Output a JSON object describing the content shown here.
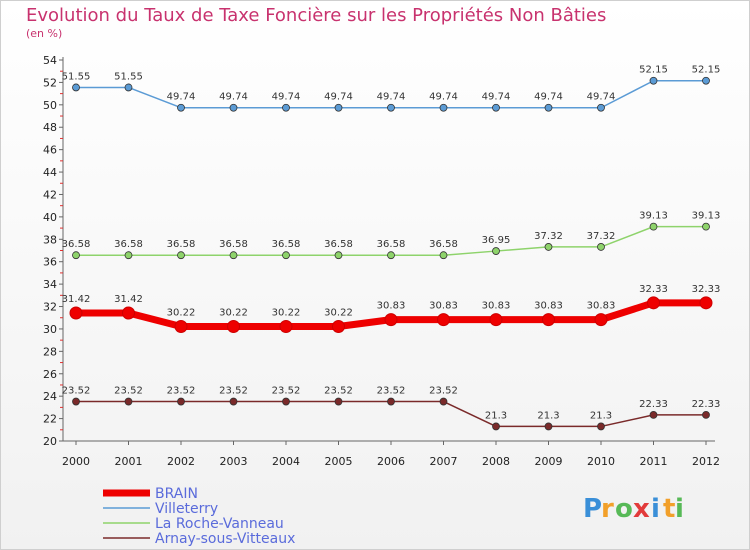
{
  "chart_data": {
    "type": "line",
    "title": "Evolution du Taux de Taxe Foncière sur les Propriétés Non Bâties",
    "subtitle": "(en %)",
    "x": [
      "2000",
      "2001",
      "2002",
      "2003",
      "2004",
      "2005",
      "2006",
      "2007",
      "2008",
      "2009",
      "2010",
      "2011",
      "2012"
    ],
    "ylim": [
      20,
      54
    ],
    "yticks": [
      20,
      22,
      24,
      26,
      28,
      30,
      32,
      34,
      36,
      38,
      40,
      42,
      44,
      46,
      48,
      50,
      52,
      54
    ],
    "grid": false,
    "series": [
      {
        "name": "Villeterry",
        "color": "#5b9bd5",
        "values": [
          51.55,
          51.55,
          49.74,
          49.74,
          49.74,
          49.74,
          49.74,
          49.74,
          49.74,
          49.74,
          49.74,
          52.15,
          52.15
        ],
        "labels": [
          "51.55",
          "51.55",
          "49.74",
          "49.74",
          "49.74",
          "49.74",
          "49.74",
          "49.74",
          "49.74",
          "49.74",
          "49.74",
          "52.15",
          "52.15"
        ]
      },
      {
        "name": "La Roche-Vanneau",
        "color": "#8ed36b",
        "values": [
          36.58,
          36.58,
          36.58,
          36.58,
          36.58,
          36.58,
          36.58,
          36.58,
          36.95,
          37.32,
          37.32,
          39.13,
          39.13
        ],
        "labels": [
          "36.58",
          "36.58",
          "36.58",
          "36.58",
          "36.58",
          "36.58",
          "36.58",
          "36.58",
          "36.95",
          "37.32",
          "37.32",
          "39.13",
          "39.13"
        ]
      },
      {
        "name": "BRAIN",
        "color": "#ee0000",
        "bold": true,
        "values": [
          31.42,
          31.42,
          30.22,
          30.22,
          30.22,
          30.22,
          30.83,
          30.83,
          30.83,
          30.83,
          30.83,
          32.33,
          32.33
        ],
        "labels": [
          "31.42",
          "31.42",
          "30.22",
          "30.22",
          "30.22",
          "30.22",
          "30.83",
          "30.83",
          "30.83",
          "30.83",
          "30.83",
          "32.33",
          "32.33"
        ]
      },
      {
        "name": "Arnay-sous-Vitteaux",
        "color": "#7a2a2a",
        "values": [
          23.52,
          23.52,
          23.52,
          23.52,
          23.52,
          23.52,
          23.52,
          23.52,
          21.3,
          21.3,
          21.3,
          22.33,
          22.33
        ],
        "labels": [
          "23.52",
          "23.52",
          "23.52",
          "23.52",
          "23.52",
          "23.52",
          "23.52",
          "23.52",
          "21.3",
          "21.3",
          "21.3",
          "22.33",
          "22.33"
        ]
      }
    ],
    "legend": [
      "BRAIN",
      "Villeterry",
      "La Roche-Vanneau",
      "Arnay-sous-Vitteaux"
    ],
    "legend_position": "bottom-left"
  },
  "logo": {
    "text": "Proxiti",
    "letters": [
      "P",
      "r",
      "o",
      "x",
      "i",
      "t",
      "i"
    ],
    "colors": [
      "#3a8fd8",
      "#f2a02a",
      "#57b957",
      "#e23b3b",
      "#3a8fd8",
      "#f2a02a",
      "#57b957"
    ]
  }
}
